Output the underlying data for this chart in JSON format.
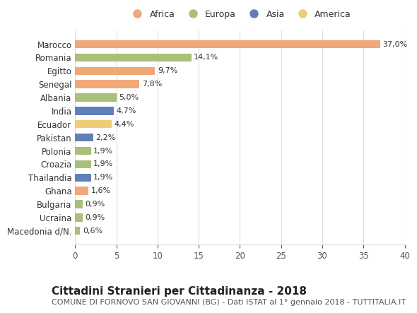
{
  "countries": [
    "Marocco",
    "Romania",
    "Egitto",
    "Senegal",
    "Albania",
    "India",
    "Ecuador",
    "Pakistan",
    "Polonia",
    "Croazia",
    "Thailandia",
    "Ghana",
    "Bulgaria",
    "Ucraina",
    "Macedonia d/N."
  ],
  "values": [
    37.0,
    14.1,
    9.7,
    7.8,
    5.0,
    4.7,
    4.4,
    2.2,
    1.9,
    1.9,
    1.9,
    1.6,
    0.9,
    0.9,
    0.6
  ],
  "labels": [
    "37,0%",
    "14,1%",
    "9,7%",
    "7,8%",
    "5,0%",
    "4,7%",
    "4,4%",
    "2,2%",
    "1,9%",
    "1,9%",
    "1,9%",
    "1,6%",
    "0,9%",
    "0,9%",
    "0,6%"
  ],
  "continents": [
    "Africa",
    "Europa",
    "Africa",
    "Africa",
    "Europa",
    "Asia",
    "America",
    "Asia",
    "Europa",
    "Europa",
    "Asia",
    "Africa",
    "Europa",
    "Europa",
    "Europa"
  ],
  "continent_colors": {
    "Africa": "#F0A878",
    "Europa": "#AABF78",
    "Asia": "#6080B8",
    "America": "#F0CC78"
  },
  "legend_order": [
    "Africa",
    "Europa",
    "Asia",
    "America"
  ],
  "xlim": [
    0,
    40
  ],
  "xticks": [
    0,
    5,
    10,
    15,
    20,
    25,
    30,
    35,
    40
  ],
  "title": "Cittadini Stranieri per Cittadinanza - 2018",
  "subtitle": "COMUNE DI FORNOVO SAN GIOVANNI (BG) - Dati ISTAT al 1° gennaio 2018 - TUTTITALIA.IT",
  "bg_color": "#ffffff",
  "grid_color": "#dddddd",
  "bar_height": 0.6,
  "title_fontsize": 11,
  "subtitle_fontsize": 8,
  "label_fontsize": 8,
  "tick_fontsize": 8.5,
  "legend_fontsize": 9
}
